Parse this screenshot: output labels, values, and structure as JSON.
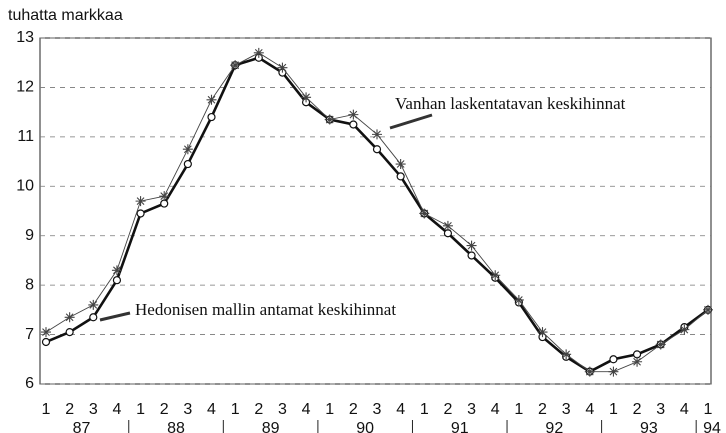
{
  "chart_data": {
    "type": "line",
    "y_label": "tuhatta markkaa",
    "categories": [
      "1",
      "2",
      "3",
      "4",
      "1",
      "2",
      "3",
      "4",
      "1",
      "2",
      "3",
      "4",
      "1",
      "2",
      "3",
      "4",
      "1",
      "2",
      "3",
      "4",
      "1",
      "2",
      "3",
      "4",
      "1",
      "2",
      "3",
      "4",
      "1"
    ],
    "years": [
      "87",
      "88",
      "89",
      "90",
      "91",
      "92",
      "93",
      "94"
    ],
    "series": [
      {
        "name": "Hedonisen mallin antamat keskihinnat",
        "color": "#111111",
        "values": [
          6.85,
          7.05,
          7.35,
          8.1,
          9.45,
          9.65,
          10.45,
          11.4,
          12.45,
          12.6,
          12.3,
          11.7,
          11.35,
          11.25,
          10.75,
          10.2,
          9.45,
          9.05,
          8.6,
          8.15,
          7.65,
          6.95,
          6.55,
          6.25,
          6.5,
          6.6,
          6.8,
          7.15,
          7.5
        ]
      },
      {
        "name": "Vanhan laskentatavan keskihinnat",
        "color": "#444444",
        "values": [
          7.05,
          7.35,
          7.6,
          8.3,
          9.7,
          9.8,
          10.75,
          11.75,
          12.45,
          12.7,
          12.4,
          11.8,
          11.35,
          11.45,
          11.05,
          10.45,
          9.45,
          9.2,
          8.8,
          8.2,
          7.7,
          7.05,
          6.6,
          6.25,
          6.25,
          6.45,
          6.8,
          7.1,
          7.5
        ]
      }
    ],
    "ylim": [
      6,
      13
    ],
    "yticks": [
      6,
      7,
      8,
      9,
      10,
      11,
      12,
      13
    ],
    "grid": true
  }
}
